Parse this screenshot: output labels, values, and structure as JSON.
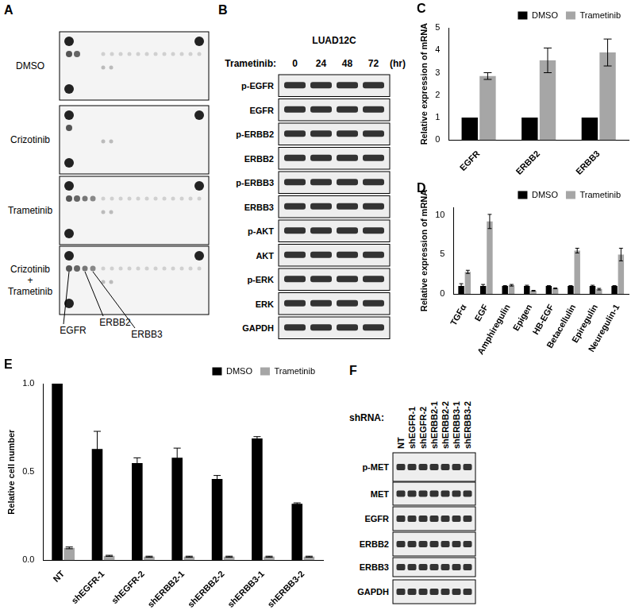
{
  "panels": {
    "A": {
      "label": "A",
      "conditions": [
        [
          "DMSO"
        ],
        [
          "Crizotinib"
        ],
        [
          "Trametinib"
        ],
        [
          "Crizotinib",
          "+",
          "Trametinib"
        ]
      ],
      "spot_labels": [
        "EGFR",
        "ERBB2",
        "ERBB3"
      ]
    },
    "B": {
      "label": "B",
      "cell_line": "LUAD12C",
      "treatment": "Trametinib:",
      "timepoints": [
        0,
        24,
        48,
        72
      ],
      "unit": "(hr)",
      "rows": [
        "p-EGFR",
        "EGFR",
        "p-ERBB2",
        "ERBB2",
        "p-ERBB3",
        "ERBB3",
        "p-AKT",
        "AKT",
        "p-ERK",
        "ERK",
        "GAPDH"
      ]
    },
    "F": {
      "label": "F",
      "treatment": "shRNA:",
      "lanes": [
        "NT",
        "shEGFR-1",
        "shEGFR-2",
        "shERBB2-1",
        "shERBB2-2",
        "shERBB3-1",
        "shERBB3-2"
      ],
      "rows": [
        "p-MET",
        "MET",
        "EGFR",
        "ERBB2",
        "ERBB3",
        "GAPDH"
      ]
    }
  },
  "chart_data": [
    {
      "label": "C",
      "type": "bar",
      "y_label": "Relative expression of mRNA",
      "categories": [
        "EGFR",
        "ERBB2",
        "ERBB3"
      ],
      "series": [
        {
          "name": "DMSO",
          "color": "#000000",
          "values": [
            1,
            1,
            1
          ],
          "errors": [
            0,
            0,
            0
          ]
        },
        {
          "name": "Trametinib",
          "color": "#a6a6a6",
          "values": [
            2.85,
            3.55,
            3.9
          ],
          "errors": [
            0.15,
            0.55,
            0.6
          ]
        }
      ],
      "ylim": [
        0,
        5
      ],
      "yticks": [
        0,
        1,
        2,
        3,
        4,
        5
      ],
      "legend": "top-right",
      "grid": false
    },
    {
      "label": "D",
      "type": "bar",
      "y_label": "Relative expression of mRNA",
      "categories": [
        "TGFα",
        "EGF",
        "Amphiregulin",
        "Epigen",
        "HB-EGF",
        "Betacellulin",
        "Epiregulin",
        "Neuregulin-1"
      ],
      "series": [
        {
          "name": "DMSO",
          "color": "#000000",
          "values": [
            1,
            1,
            1,
            1,
            1,
            1,
            1,
            1
          ],
          "errors": [
            0.3,
            0.2,
            0.05,
            0.1,
            0.05,
            0.05,
            0.1,
            0.05
          ]
        },
        {
          "name": "Trametinib",
          "color": "#a6a6a6",
          "values": [
            2.8,
            9.2,
            1.1,
            0.4,
            0.7,
            5.5,
            0.6,
            5.0
          ],
          "errors": [
            0.2,
            0.9,
            0.1,
            0.05,
            0.05,
            0.3,
            0.1,
            0.8
          ]
        }
      ],
      "ylim": [
        0,
        11
      ],
      "yticks": [
        0,
        5,
        10
      ],
      "legend": "top-right",
      "grid": false
    },
    {
      "label": "E",
      "type": "bar",
      "y_label": "Relative cell number",
      "categories": [
        "NT",
        "shEGFR-1",
        "shEGFR-2",
        "shERBB2-1",
        "shERBB2-2",
        "shERBB3-1",
        "shERBB3-2"
      ],
      "series": [
        {
          "name": "DMSO",
          "color": "#000000",
          "values": [
            1.0,
            0.63,
            0.55,
            0.58,
            0.46,
            0.69,
            0.32
          ],
          "errors": [
            0,
            0.1,
            0.03,
            0.055,
            0.02,
            0.01,
            0.005
          ]
        },
        {
          "name": "Trametinib",
          "color": "#a6a6a6",
          "values": [
            0.07,
            0.025,
            0.02,
            0.02,
            0.02,
            0.02,
            0.02
          ],
          "errors": [
            0.005,
            0.003,
            0.003,
            0.003,
            0.003,
            0.003,
            0.003
          ]
        }
      ],
      "ylim": [
        0,
        1.0
      ],
      "yticks": [
        {
          "value": 0,
          "label": "0.0"
        },
        {
          "value": 0.5,
          "label": "0.5"
        },
        {
          "value": 1.0,
          "label": "1.0"
        }
      ],
      "legend": "top-right",
      "grid": false
    }
  ]
}
